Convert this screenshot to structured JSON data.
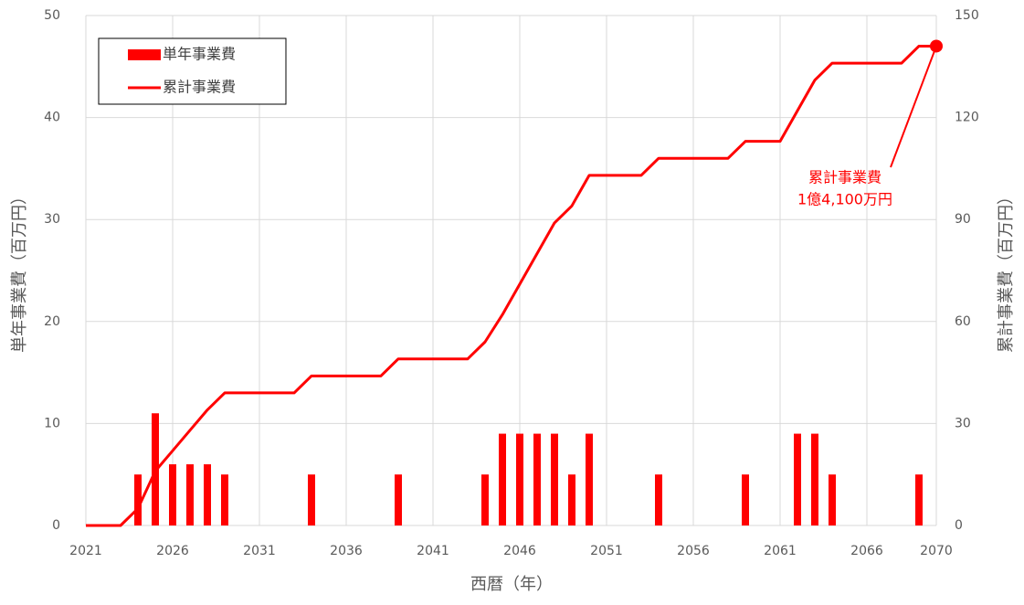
{
  "chart_data": {
    "type": "bar_line",
    "xlabel": "西暦（年）",
    "ylabel": "単年事業費（百万円）",
    "y2label": "累計事業費（百万円）",
    "xlim": [
      2021,
      2070
    ],
    "xticks": [
      2021,
      2026,
      2031,
      2036,
      2041,
      2046,
      2051,
      2056,
      2061,
      2066,
      2070
    ],
    "ylim": [
      0,
      50
    ],
    "yticks": [
      0,
      10,
      20,
      30,
      40,
      50
    ],
    "y2lim": [
      0,
      150
    ],
    "y2ticks": [
      0,
      30,
      60,
      90,
      120,
      150
    ],
    "grid": true,
    "legend": "upper left",
    "series": [
      {
        "name": "単年事業費",
        "type": "bar",
        "color": "#ff0000",
        "x": [
          2024,
          2025,
          2026,
          2027,
          2028,
          2029,
          2034,
          2039,
          2044,
          2045,
          2046,
          2047,
          2048,
          2049,
          2050,
          2054,
          2059,
          2062,
          2063,
          2064,
          2069
        ],
        "values": [
          5,
          11,
          6,
          6,
          6,
          5,
          5,
          5,
          5,
          9,
          9,
          9,
          9,
          5,
          9,
          5,
          5,
          9,
          9,
          5,
          5
        ]
      },
      {
        "name": "累計事業費",
        "type": "line",
        "axis": "y2",
        "color": "#ff0000",
        "x": [
          2021,
          2022,
          2023,
          2024,
          2025,
          2026,
          2027,
          2028,
          2029,
          2030,
          2031,
          2032,
          2033,
          2034,
          2035,
          2036,
          2037,
          2038,
          2039,
          2040,
          2041,
          2042,
          2043,
          2044,
          2045,
          2046,
          2047,
          2048,
          2049,
          2050,
          2051,
          2052,
          2053,
          2054,
          2055,
          2056,
          2057,
          2058,
          2059,
          2060,
          2061,
          2062,
          2063,
          2064,
          2065,
          2066,
          2067,
          2068,
          2069,
          2070
        ],
        "values": [
          0,
          0,
          0,
          5,
          16,
          22,
          28,
          34,
          39,
          39,
          39,
          39,
          39,
          44,
          44,
          44,
          44,
          44,
          49,
          49,
          49,
          49,
          49,
          54,
          62,
          71,
          80,
          89,
          94,
          103,
          103,
          103,
          103,
          108,
          108,
          108,
          108,
          108,
          113,
          113,
          113,
          122,
          131,
          136,
          136,
          136,
          136,
          136,
          141,
          141
        ]
      }
    ],
    "annotation": {
      "lines": [
        "累計事業費",
        "1億4,100万円"
      ]
    }
  }
}
